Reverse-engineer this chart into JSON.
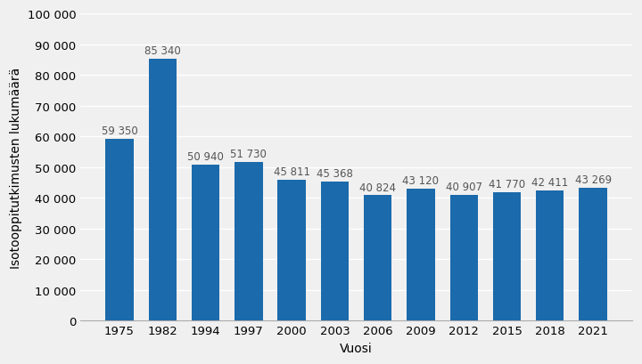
{
  "categories": [
    "1975",
    "1982",
    "1994",
    "1997",
    "2000",
    "2003",
    "2006",
    "2009",
    "2012",
    "2015",
    "2018",
    "2021"
  ],
  "values": [
    59350,
    85340,
    50940,
    51730,
    45811,
    45368,
    40824,
    43120,
    40907,
    41770,
    42411,
    43269
  ],
  "labels": [
    "59 350",
    "85 340",
    "50 940",
    "51 730",
    "45 811",
    "45 368",
    "40 824",
    "43 120",
    "40 907",
    "41 770",
    "42 411",
    "43 269"
  ],
  "bar_color": "#1b6aab",
  "ylabel": "Isotooppitutkimusten lukumäärä",
  "xlabel": "Vuosi",
  "ylim": [
    0,
    100000
  ],
  "yticks": [
    0,
    10000,
    20000,
    30000,
    40000,
    50000,
    60000,
    70000,
    80000,
    90000,
    100000
  ],
  "ytick_labels": [
    "0",
    "10 000",
    "20 000",
    "30 000",
    "40 000",
    "50 000",
    "60 000",
    "70 000",
    "80 000",
    "90 000",
    "100 000"
  ],
  "background_color": "#f0f0f0",
  "grid_color": "#ffffff",
  "label_fontsize": 8.5,
  "axis_fontsize": 10,
  "tick_fontsize": 9.5
}
